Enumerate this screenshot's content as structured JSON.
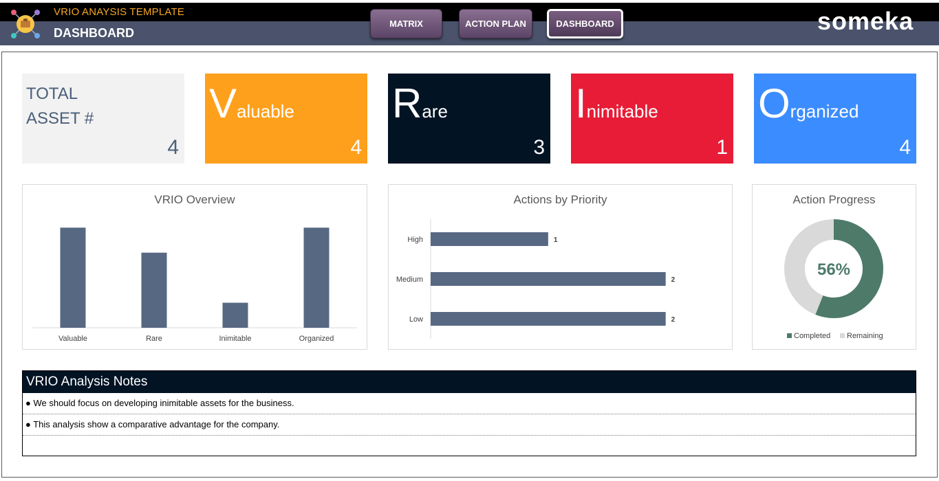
{
  "header": {
    "app_title": "VRIO ANAYSIS TEMPLATE",
    "page_title": "DASHBOARD",
    "brand": "someka",
    "nav": [
      {
        "label": "MATRIX",
        "active": false
      },
      {
        "label": "ACTION PLAN",
        "active": false
      },
      {
        "label": "DASHBOARD",
        "active": true
      }
    ]
  },
  "kpis": {
    "total": {
      "label_line1": "TOTAL",
      "label_line2": "ASSET #",
      "value": "4"
    },
    "valuable": {
      "initial": "V",
      "rest": "aluable",
      "value": "4",
      "color": "#ffa01c"
    },
    "rare": {
      "initial": "R",
      "rest": "are",
      "value": "3",
      "color": "#021324"
    },
    "inimitable": {
      "initial": "I",
      "rest": "nimitable",
      "value": "1",
      "color": "#e81c36"
    },
    "organized": {
      "initial": "O",
      "rest": "rganized",
      "value": "4",
      "color": "#3b8cff"
    }
  },
  "chart_data": [
    {
      "type": "bar",
      "title": "VRIO Overview",
      "categories": [
        "Valuable",
        "Rare",
        "Inimitable",
        "Organized"
      ],
      "values": [
        4,
        3,
        1,
        4
      ],
      "ylim": [
        0,
        4.2
      ],
      "color": "#576882"
    },
    {
      "type": "bar",
      "orientation": "horizontal",
      "title": "Actions by Priority",
      "categories": [
        "High",
        "Medium",
        "Low"
      ],
      "values": [
        1,
        2,
        2
      ],
      "xlim": [
        0,
        2.4
      ],
      "data_labels": [
        "1",
        "2",
        "2"
      ],
      "color": "#576882"
    },
    {
      "type": "pie",
      "donut": true,
      "title": "Action Progress",
      "center_label": "56%",
      "slices": [
        {
          "name": "Completed",
          "value": 56,
          "color": "#4e7a6a"
        },
        {
          "name": "Remaining",
          "value": 44,
          "color": "#d9d9d9"
        }
      ]
    }
  ],
  "notes": {
    "title": "VRIO Analysis Notes",
    "items": [
      "● We should focus on developing inimitable assets for the business.",
      "● This analysis show a comparative advantage for the company.",
      ""
    ]
  }
}
